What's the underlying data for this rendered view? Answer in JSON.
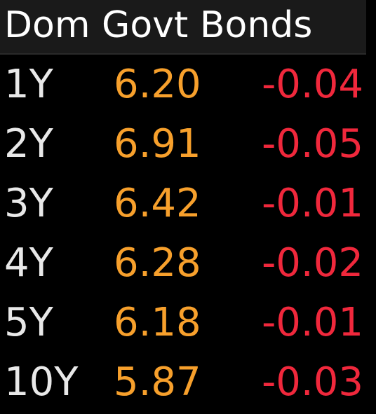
{
  "header": {
    "title": "Dom Govt Bonds"
  },
  "rows": [
    {
      "tenor": "1Y",
      "yield": "6.20",
      "change": "-0.04"
    },
    {
      "tenor": "2Y",
      "yield": "6.91",
      "change": "-0.05"
    },
    {
      "tenor": "3Y",
      "yield": "6.42",
      "change": "-0.01"
    },
    {
      "tenor": "4Y",
      "yield": "6.28",
      "change": "-0.02"
    },
    {
      "tenor": "5Y",
      "yield": "6.18",
      "change": "-0.01"
    },
    {
      "tenor": "10Y",
      "yield": "5.87",
      "change": "-0.03"
    }
  ],
  "colors": {
    "background": "#000000",
    "header_background": "#1a1a1a",
    "title": "#ffffff",
    "tenor": "#e8e8e8",
    "yield": "#f7a02c",
    "change_negative": "#f0283c"
  }
}
